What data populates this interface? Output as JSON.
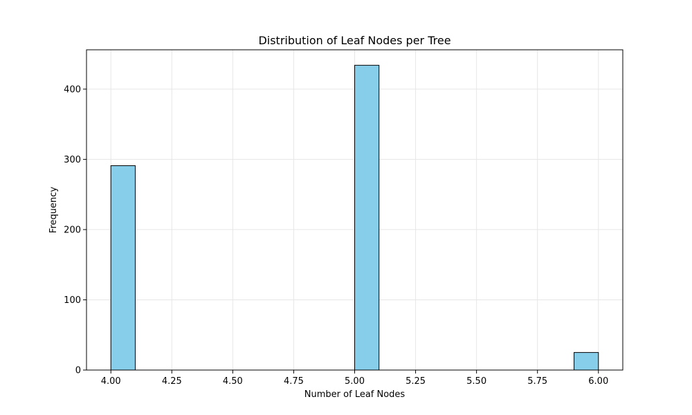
{
  "chart_data": {
    "type": "bar",
    "title": "Distribution of Leaf Nodes per Tree",
    "xlabel": "Number of Leaf Nodes",
    "ylabel": "Frequency",
    "bin_width": 0.1,
    "bins": [
      {
        "start": 4.0,
        "end": 4.1,
        "count": 291
      },
      {
        "start": 5.0,
        "end": 5.1,
        "count": 434
      },
      {
        "start": 5.9,
        "end": 6.0,
        "count": 25
      }
    ],
    "xlim": [
      3.9,
      6.1
    ],
    "ylim": [
      0,
      456
    ],
    "x_ticks": [
      "4.00",
      "4.25",
      "4.50",
      "4.75",
      "5.00",
      "5.25",
      "5.50",
      "5.75",
      "6.00"
    ],
    "y_ticks": [
      "0",
      "100",
      "200",
      "300",
      "400"
    ],
    "grid": true,
    "colors": {
      "bar_fill": "#87ceeb",
      "bar_edge": "#000000",
      "grid": "#e6e6e6",
      "axes": "#000000"
    }
  }
}
